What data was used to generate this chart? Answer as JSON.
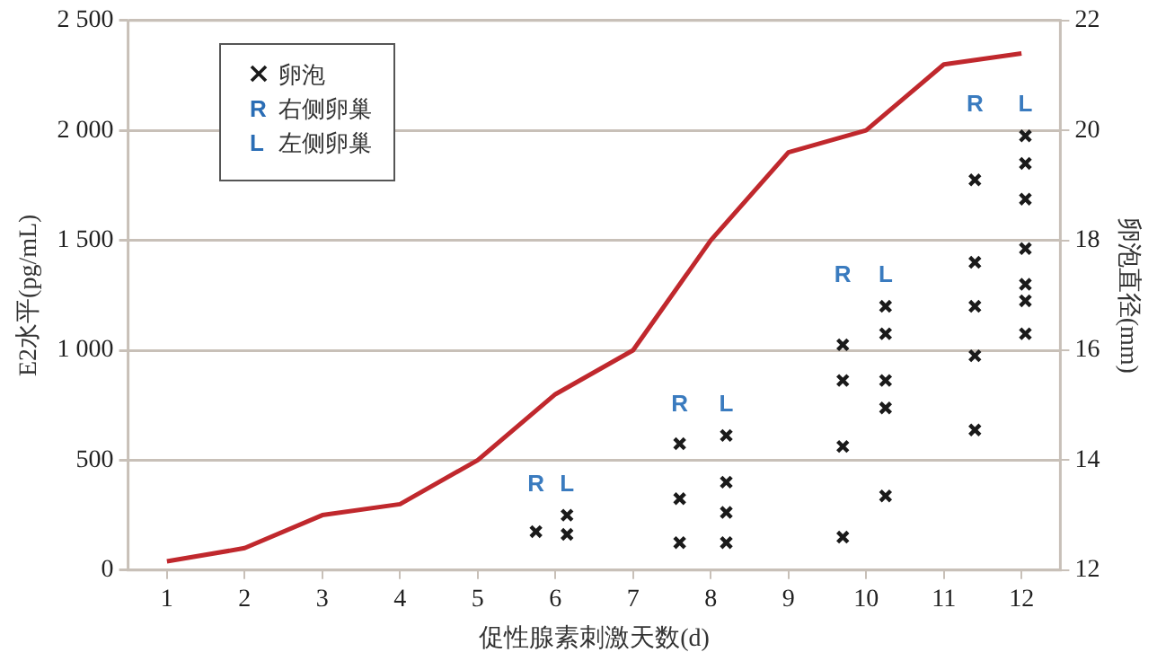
{
  "chart_data": {
    "type": "line",
    "xlabel": "促性腺素刺激天数(d)",
    "ylabel": "E2水平(pg/mL)",
    "y2label": "卵泡直径(mm)",
    "x": [
      1,
      2,
      3,
      4,
      5,
      6,
      7,
      8,
      9,
      10,
      11,
      12
    ],
    "xlim": [
      0.5,
      12.5
    ],
    "xticks": [
      1,
      2,
      3,
      4,
      5,
      6,
      7,
      8,
      9,
      10,
      11,
      12
    ],
    "ylim": [
      0,
      2500
    ],
    "yticks": [
      0,
      500,
      {
        "value": 1000,
        "label": "1 000"
      },
      {
        "value": 1500,
        "label": "1 500"
      },
      {
        "value": 2000,
        "label": "2 000"
      },
      {
        "value": 2500,
        "label": "2 500"
      }
    ],
    "y2lim": [
      12,
      22
    ],
    "y2ticks": [
      12,
      14,
      16,
      18,
      20,
      22
    ],
    "grid": "y",
    "legend": "top left",
    "series": [
      {
        "type": "line",
        "color": "#c0282d",
        "marker": "none",
        "values": [
          40,
          100,
          250,
          300,
          500,
          800,
          1000,
          1500,
          1900,
          2000,
          2300,
          2350
        ]
      },
      {
        "type": "scatter",
        "name": "卵泡",
        "color": "#1a1a1a",
        "marker": "cross",
        "axis": "y2",
        "x": [
          5.75,
          6.15,
          6.15,
          7.6,
          7.6,
          7.6,
          8.2,
          8.2,
          8.2,
          8.2,
          9.7,
          9.7,
          9.7,
          9.7,
          10.25,
          10.25,
          10.25,
          10.25,
          10.25,
          11.4,
          11.4,
          11.4,
          11.4,
          11.4,
          12.05,
          12.05,
          12.05,
          12.05,
          12.05,
          12.05,
          12.05
        ],
        "values": [
          12.7,
          13.0,
          12.65,
          14.3,
          13.3,
          12.5,
          14.45,
          13.6,
          13.05,
          12.5,
          16.1,
          15.45,
          14.25,
          12.6,
          16.8,
          16.3,
          15.45,
          14.95,
          13.35,
          19.1,
          17.6,
          16.8,
          15.9,
          14.55,
          19.9,
          19.4,
          18.75,
          17.85,
          17.2,
          16.9,
          16.3
        ]
      }
    ],
    "annotations": [
      "R 右侧卵巢",
      "L 左侧卵巢",
      "R",
      "L",
      "R",
      "L",
      "R",
      "L",
      "R",
      "L"
    ]
  }
}
